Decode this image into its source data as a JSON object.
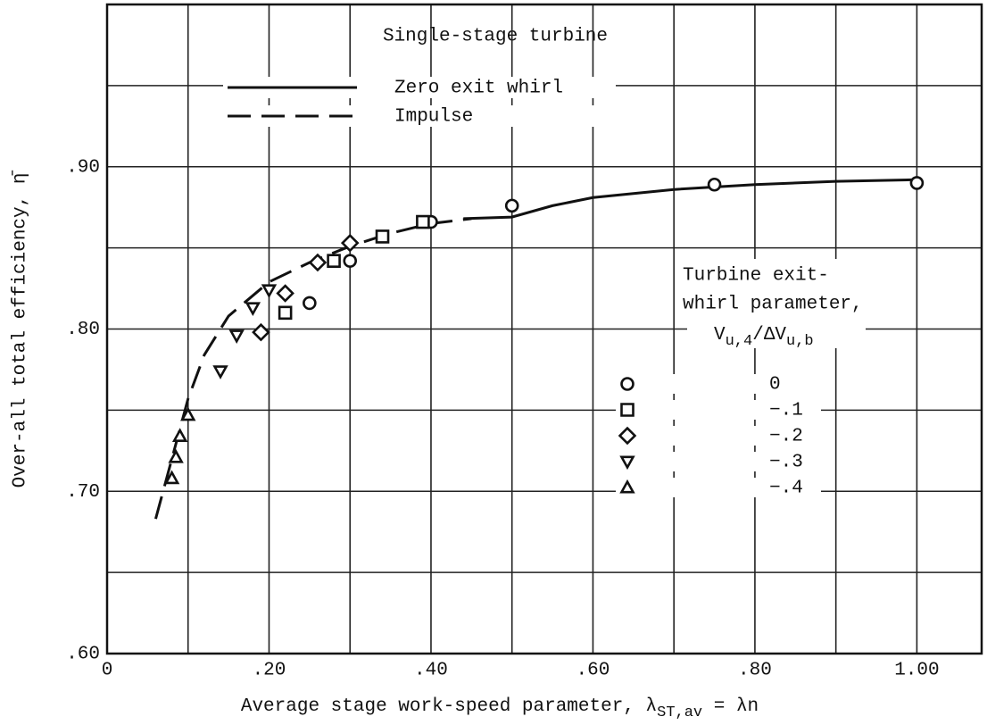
{
  "chart_data": {
    "type": "scatter",
    "title": "Single-stage turbine",
    "xlabel": [
      "Average stage work-speed parameter, λ",
      "ST,av",
      " = λn"
    ],
    "ylabel": "Over-all total efficiency, η̄",
    "xlim": [
      0,
      1.08
    ],
    "ylim": [
      0.6,
      1.0
    ],
    "xticks": [
      0,
      {
        "value": 0.2,
        "label": ".20"
      },
      {
        "value": 0.4,
        "label": ".40"
      },
      {
        "value": 0.6,
        "label": ".60"
      },
      {
        "value": 0.8,
        "label": ".80"
      },
      {
        "value": 1.0,
        "label": "1.00"
      }
    ],
    "xminorticks": [
      0.1,
      0.3,
      0.5,
      0.7,
      0.9
    ],
    "yticks": [
      {
        "value": 0.6,
        "label": ".60"
      },
      {
        "value": 0.7,
        "label": ".70"
      },
      {
        "value": 0.8,
        "label": ".80"
      },
      {
        "value": 0.9,
        "label": ".90"
      }
    ],
    "yminorticks": [
      0.65,
      0.75,
      0.85,
      0.95
    ],
    "grid": true,
    "legend_title": [
      "Turbine exit-",
      "whirl parameter,"
    ],
    "legend_symbol": [
      "V",
      "u,4",
      "/ΔV",
      "u,b"
    ],
    "lines": [
      {
        "name": "Zero exit whirl",
        "style": "solid",
        "color": "#111",
        "x": [
          0.44,
          0.5,
          0.55,
          0.6,
          0.7,
          0.8,
          0.9,
          1.0
        ],
        "values": [
          0.868,
          0.869,
          0.876,
          0.881,
          0.886,
          0.889,
          0.891,
          0.892
        ]
      },
      {
        "name": "Impulse",
        "style": "dashed",
        "color": "#111",
        "x": [
          0.06,
          0.08,
          0.1,
          0.12,
          0.15,
          0.2,
          0.25,
          0.3,
          0.35,
          0.4,
          0.45
        ],
        "values": [
          0.683,
          0.72,
          0.757,
          0.784,
          0.808,
          0.829,
          0.841,
          0.851,
          0.859,
          0.865,
          0.868
        ]
      }
    ],
    "series": [
      {
        "name": "0",
        "marker": "circle",
        "color": "#111",
        "x": [
          0.25,
          0.3,
          0.4,
          0.5,
          0.75,
          1.0
        ],
        "values": [
          0.816,
          0.842,
          0.866,
          0.876,
          0.889,
          0.89
        ]
      },
      {
        "name": "−.1",
        "marker": "square",
        "color": "#111",
        "x": [
          0.22,
          0.28,
          0.34,
          0.39
        ],
        "values": [
          0.81,
          0.842,
          0.857,
          0.866
        ]
      },
      {
        "name": "−.2",
        "marker": "diamond",
        "color": "#111",
        "x": [
          0.19,
          0.22,
          0.26,
          0.3
        ],
        "values": [
          0.798,
          0.822,
          0.841,
          0.853
        ]
      },
      {
        "name": "−.3",
        "marker": "triangle-down",
        "color": "#111",
        "x": [
          0.14,
          0.16,
          0.18,
          0.2
        ],
        "values": [
          0.774,
          0.796,
          0.813,
          0.824
        ]
      },
      {
        "name": "−.4",
        "marker": "triangle-up",
        "color": "#111",
        "x": [
          0.08,
          0.085,
          0.09,
          0.1
        ],
        "values": [
          0.708,
          0.721,
          0.734,
          0.747
        ]
      }
    ]
  }
}
